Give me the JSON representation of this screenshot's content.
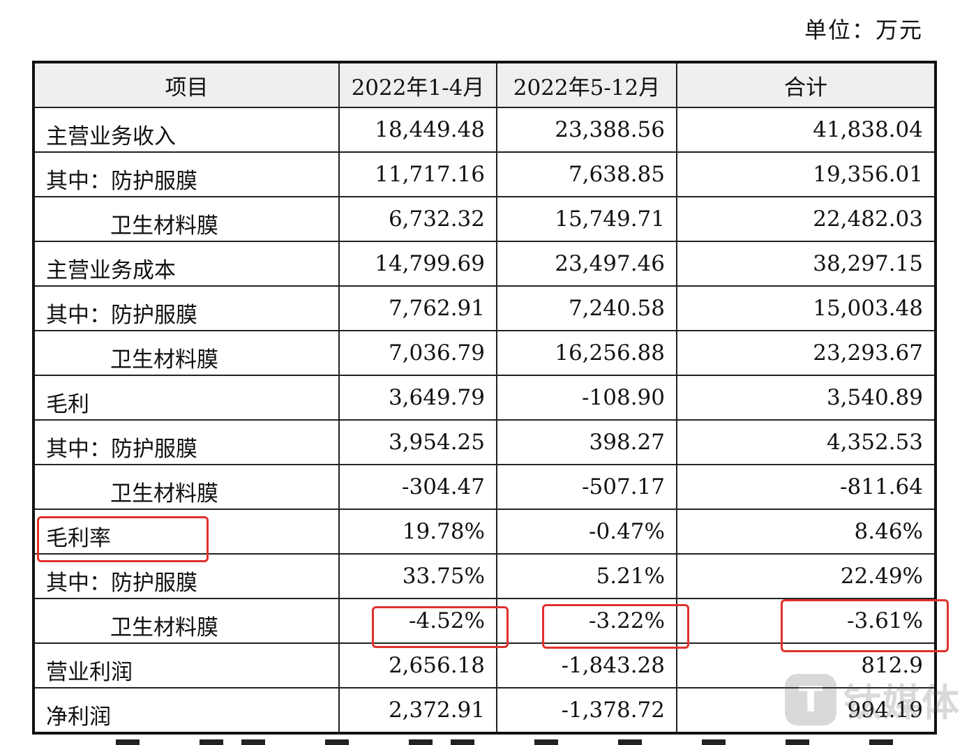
{
  "unit_label": "单位：万元",
  "table": {
    "headers": [
      "项目",
      "2022年1-4月",
      "2022年5-12月",
      "合计"
    ],
    "rows": [
      {
        "label": "主营业务收入",
        "indent": false,
        "values": [
          "18,449.48",
          "23,388.56",
          "41,838.04"
        ]
      },
      {
        "label": "其中：防护服膜",
        "indent": false,
        "values": [
          "11,717.16",
          "7,638.85",
          "19,356.01"
        ]
      },
      {
        "label": "卫生材料膜",
        "indent": true,
        "values": [
          "6,732.32",
          "15,749.71",
          "22,482.03"
        ]
      },
      {
        "label": "主营业务成本",
        "indent": false,
        "values": [
          "14,799.69",
          "23,497.46",
          "38,297.15"
        ]
      },
      {
        "label": "其中：防护服膜",
        "indent": false,
        "values": [
          "7,762.91",
          "7,240.58",
          "15,003.48"
        ]
      },
      {
        "label": "卫生材料膜",
        "indent": true,
        "values": [
          "7,036.79",
          "16,256.88",
          "23,293.67"
        ]
      },
      {
        "label": "毛利",
        "indent": false,
        "values": [
          "3,649.79",
          "-108.90",
          "3,540.89"
        ]
      },
      {
        "label": "其中：防护服膜",
        "indent": false,
        "values": [
          "3,954.25",
          "398.27",
          "4,352.53"
        ]
      },
      {
        "label": "卫生材料膜",
        "indent": true,
        "values": [
          "-304.47",
          "-507.17",
          "-811.64"
        ]
      },
      {
        "label": "毛利率",
        "indent": false,
        "values": [
          "19.78%",
          "-0.47%",
          "8.46%"
        ]
      },
      {
        "label": "其中：防护服膜",
        "indent": false,
        "values": [
          "33.75%",
          "5.21%",
          "22.49%"
        ]
      },
      {
        "label": "卫生材料膜",
        "indent": true,
        "values": [
          "-4.52%",
          "-3.22%",
          "-3.61%"
        ]
      },
      {
        "label": "营业利润",
        "indent": false,
        "values": [
          "2,656.18",
          "-1,843.28",
          "812.9"
        ]
      },
      {
        "label": "净利润",
        "indent": false,
        "values": [
          "2,372.91",
          "-1,378.72",
          "994.19"
        ]
      }
    ]
  },
  "highlight_color": "#e0312c",
  "watermark": {
    "logo_glyph": "T",
    "text": "钛媒体"
  }
}
